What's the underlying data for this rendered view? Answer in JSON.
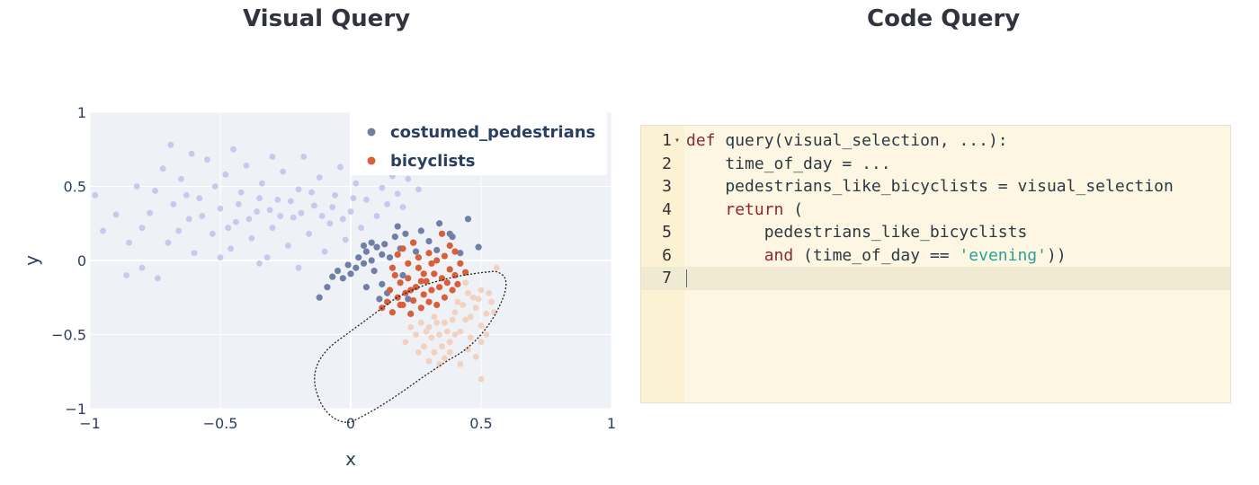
{
  "titles": {
    "visual": "Visual Query",
    "code": "Code Query"
  },
  "chart_data": {
    "type": "scatter",
    "xlabel": "x",
    "ylabel": "y",
    "xlim": [
      -1,
      1
    ],
    "ylim": [
      -1,
      1
    ],
    "x_ticks": [
      "−1",
      "−0.5",
      "0",
      "0.5",
      "1"
    ],
    "y_ticks": [
      "1",
      "0.5",
      "0",
      "−0.5",
      "−1"
    ],
    "grid": true,
    "legend_position": "top-right",
    "series": [
      {
        "name": "costumed_pedestrians",
        "color": "#6f7fa5",
        "faded_color": "#c9c7ec",
        "selected_points": [
          [
            -0.07,
            -0.11
          ],
          [
            -0.05,
            -0.07
          ],
          [
            -0.03,
            -0.12
          ],
          [
            -0.01,
            -0.03
          ],
          [
            0.0,
            -0.09
          ],
          [
            0.02,
            -0.05
          ],
          [
            0.03,
            0.02
          ],
          [
            0.05,
            -0.02
          ],
          [
            0.06,
            0.06
          ],
          [
            0.08,
            0.0
          ],
          [
            0.09,
            -0.07
          ],
          [
            0.1,
            0.09
          ],
          [
            0.12,
            0.04
          ],
          [
            0.13,
            0.11
          ],
          [
            0.15,
            0.02
          ],
          [
            0.17,
            0.16
          ],
          [
            0.19,
            0.08
          ],
          [
            0.21,
            0.18
          ],
          [
            0.24,
            0.12
          ],
          [
            0.27,
            0.2
          ],
          [
            0.3,
            0.13
          ],
          [
            0.34,
            0.25
          ],
          [
            0.38,
            0.18
          ],
          [
            0.45,
            0.28
          ],
          [
            0.49,
            0.09
          ],
          [
            -0.12,
            -0.25
          ],
          [
            -0.09,
            -0.18
          ],
          [
            0.06,
            -0.18
          ],
          [
            0.11,
            -0.26
          ],
          [
            0.14,
            -0.22
          ],
          [
            0.2,
            -0.1
          ],
          [
            0.05,
            0.1
          ],
          [
            0.18,
            0.23
          ],
          [
            0.25,
            0.06
          ],
          [
            0.33,
            0.07
          ],
          [
            0.42,
            0.05
          ],
          [
            0.08,
            0.12
          ],
          [
            0.12,
            -0.16
          ],
          [
            0.22,
            -0.26
          ],
          [
            0.39,
            0.16
          ]
        ],
        "faded_points": [
          [
            -0.98,
            0.44
          ],
          [
            -0.9,
            0.31
          ],
          [
            -0.85,
            0.12
          ],
          [
            -0.8,
            0.22
          ],
          [
            -0.75,
            0.47
          ],
          [
            -0.72,
            0.62
          ],
          [
            -0.7,
            0.12
          ],
          [
            -0.68,
            0.38
          ],
          [
            -0.65,
            0.55
          ],
          [
            -0.62,
            0.28
          ],
          [
            -0.6,
            0.05
          ],
          [
            -0.58,
            0.42
          ],
          [
            -0.55,
            0.68
          ],
          [
            -0.53,
            0.18
          ],
          [
            -0.5,
            0.35
          ],
          [
            -0.48,
            0.58
          ],
          [
            -0.46,
            0.08
          ],
          [
            -0.44,
            0.26
          ],
          [
            -0.42,
            0.46
          ],
          [
            -0.4,
            0.64
          ],
          [
            -0.38,
            0.15
          ],
          [
            -0.36,
            0.33
          ],
          [
            -0.34,
            0.52
          ],
          [
            -0.32,
            0.02
          ],
          [
            -0.3,
            0.22
          ],
          [
            -0.28,
            0.41
          ],
          [
            -0.26,
            0.6
          ],
          [
            -0.24,
            0.1
          ],
          [
            -0.22,
            0.29
          ],
          [
            -0.2,
            0.48
          ],
          [
            -0.18,
            0.7
          ],
          [
            -0.16,
            0.18
          ],
          [
            -0.14,
            0.37
          ],
          [
            -0.12,
            0.56
          ],
          [
            -0.1,
            0.06
          ],
          [
            -0.08,
            0.25
          ],
          [
            -0.06,
            0.44
          ],
          [
            -0.04,
            0.63
          ],
          [
            -0.02,
            0.14
          ],
          [
            0.0,
            0.33
          ],
          [
            0.02,
            0.52
          ],
          [
            0.04,
            0.22
          ],
          [
            0.06,
            0.41
          ],
          [
            0.08,
            0.6
          ],
          [
            0.1,
            0.3
          ],
          [
            0.12,
            0.49
          ],
          [
            0.14,
            0.38
          ],
          [
            0.16,
            0.57
          ],
          [
            0.18,
            0.45
          ],
          [
            0.2,
            0.36
          ],
          [
            -0.95,
            0.2
          ],
          [
            -0.82,
            0.5
          ],
          [
            -0.77,
            0.32
          ],
          [
            -0.66,
            0.2
          ],
          [
            -0.63,
            0.44
          ],
          [
            -0.57,
            0.3
          ],
          [
            -0.52,
            0.5
          ],
          [
            -0.47,
            0.22
          ],
          [
            -0.43,
            0.38
          ],
          [
            -0.39,
            0.28
          ],
          [
            -0.35,
            0.42
          ],
          [
            -0.31,
            0.34
          ],
          [
            -0.27,
            0.3
          ],
          [
            -0.23,
            0.4
          ],
          [
            -0.19,
            0.32
          ],
          [
            -0.15,
            0.46
          ],
          [
            -0.11,
            0.3
          ],
          [
            -0.07,
            0.36
          ],
          [
            -0.03,
            0.28
          ],
          [
            0.01,
            0.42
          ],
          [
            -0.86,
            -0.1
          ],
          [
            -0.8,
            -0.05
          ],
          [
            -0.74,
            -0.12
          ],
          [
            -0.69,
            0.78
          ],
          [
            -0.61,
            0.72
          ],
          [
            -0.45,
            0.75
          ],
          [
            -0.3,
            0.7
          ],
          [
            0.05,
            0.68
          ],
          [
            0.15,
            0.66
          ],
          [
            -0.5,
            0.02
          ],
          [
            -0.35,
            -0.02
          ],
          [
            -0.2,
            -0.05
          ],
          [
            0.22,
            0.55
          ],
          [
            0.26,
            0.48
          ]
        ]
      },
      {
        "name": "bicyclists",
        "color": "#d95f3b",
        "faded_color": "#f1d2c0",
        "selected_points": [
          [
            0.12,
            -0.32
          ],
          [
            0.14,
            -0.28
          ],
          [
            0.15,
            -0.2
          ],
          [
            0.16,
            -0.35
          ],
          [
            0.18,
            -0.25
          ],
          [
            0.19,
            -0.15
          ],
          [
            0.2,
            -0.3
          ],
          [
            0.21,
            -0.22
          ],
          [
            0.22,
            -0.12
          ],
          [
            0.23,
            -0.36
          ],
          [
            0.24,
            -0.27
          ],
          [
            0.25,
            -0.18
          ],
          [
            0.26,
            -0.05
          ],
          [
            0.27,
            -0.32
          ],
          [
            0.28,
            -0.23
          ],
          [
            0.29,
            -0.14
          ],
          [
            0.3,
            -0.28
          ],
          [
            0.31,
            -0.2
          ],
          [
            0.32,
            -0.09
          ],
          [
            0.33,
            -0.3
          ],
          [
            0.34,
            -0.18
          ],
          [
            0.35,
            -0.12
          ],
          [
            0.36,
            -0.25
          ],
          [
            0.37,
            -0.15
          ],
          [
            0.38,
            -0.06
          ],
          [
            0.39,
            -0.2
          ],
          [
            0.4,
            -0.1
          ],
          [
            0.41,
            -0.16
          ],
          [
            0.42,
            -0.02
          ],
          [
            0.44,
            -0.08
          ],
          [
            0.16,
            -0.05
          ],
          [
            0.18,
            0.04
          ],
          [
            0.2,
            0.08
          ],
          [
            0.22,
            -0.02
          ],
          [
            0.24,
            0.12
          ],
          [
            0.26,
            0.02
          ],
          [
            0.28,
            -0.09
          ],
          [
            0.3,
            0.05
          ],
          [
            0.33,
            0.0
          ],
          [
            0.36,
            0.03
          ],
          [
            0.38,
            0.1
          ],
          [
            0.4,
            0.06
          ],
          [
            0.35,
            0.18
          ],
          [
            0.31,
            -0.02
          ],
          [
            0.27,
            -0.14
          ],
          [
            0.23,
            -0.2
          ],
          [
            0.19,
            -0.3
          ],
          [
            0.17,
            -0.1
          ]
        ],
        "faded_points": [
          [
            0.3,
            -0.45
          ],
          [
            0.32,
            -0.38
          ],
          [
            0.34,
            -0.5
          ],
          [
            0.36,
            -0.42
          ],
          [
            0.38,
            -0.55
          ],
          [
            0.4,
            -0.35
          ],
          [
            0.42,
            -0.48
          ],
          [
            0.44,
            -0.4
          ],
          [
            0.46,
            -0.52
          ],
          [
            0.48,
            -0.32
          ],
          [
            0.5,
            -0.44
          ],
          [
            0.52,
            -0.36
          ],
          [
            0.54,
            -0.28
          ],
          [
            0.45,
            -0.22
          ],
          [
            0.47,
            -0.25
          ],
          [
            0.5,
            -0.2
          ],
          [
            0.43,
            -0.3
          ],
          [
            0.41,
            -0.28
          ],
          [
            0.39,
            -0.4
          ],
          [
            0.37,
            -0.48
          ],
          [
            0.35,
            -0.58
          ],
          [
            0.33,
            -0.42
          ],
          [
            0.31,
            -0.52
          ],
          [
            0.29,
            -0.48
          ],
          [
            0.27,
            -0.42
          ],
          [
            0.25,
            -0.5
          ],
          [
            0.23,
            -0.45
          ],
          [
            0.21,
            -0.55
          ],
          [
            0.28,
            -0.58
          ],
          [
            0.32,
            -0.62
          ],
          [
            0.45,
            -0.6
          ],
          [
            0.5,
            -0.55
          ],
          [
            0.55,
            -0.35
          ],
          [
            0.56,
            -0.05
          ],
          [
            0.48,
            -0.65
          ],
          [
            0.42,
            -0.7
          ],
          [
            0.36,
            -0.66
          ],
          [
            0.3,
            -0.68
          ],
          [
            0.26,
            -0.62
          ],
          [
            0.5,
            -0.8
          ],
          [
            0.46,
            -0.38
          ],
          [
            0.52,
            -0.5
          ],
          [
            0.44,
            -0.15
          ],
          [
            0.49,
            -0.26
          ],
          [
            0.53,
            -0.22
          ],
          [
            0.4,
            -0.5
          ],
          [
            0.38,
            -0.62
          ],
          [
            0.34,
            -0.7
          ]
        ]
      }
    ],
    "lasso_selection": "dotted lasso around points from about (-0.13,-0.25) to (0.58,0.45)"
  },
  "editor": {
    "lines": [
      {
        "n": "1",
        "fold": "▾",
        "tokens": [
          [
            "kw2",
            "def"
          ],
          [
            "plain",
            " query(visual_selection, ...):"
          ]
        ]
      },
      {
        "n": "2",
        "fold": "",
        "tokens": [
          [
            "plain",
            "    time_of_day = ..."
          ]
        ]
      },
      {
        "n": "3",
        "fold": "",
        "tokens": [
          [
            "plain",
            "    pedestrians_like_bicyclists = visual_selection"
          ]
        ]
      },
      {
        "n": "4",
        "fold": "",
        "tokens": [
          [
            "plain",
            "    "
          ],
          [
            "kw2",
            "return"
          ],
          [
            "plain",
            " ("
          ]
        ]
      },
      {
        "n": "5",
        "fold": "",
        "tokens": [
          [
            "plain",
            "        pedestrians_like_bicyclists"
          ]
        ]
      },
      {
        "n": "6",
        "fold": "",
        "tokens": [
          [
            "plain",
            "        "
          ],
          [
            "kw2",
            "and"
          ],
          [
            "plain",
            " (time_of_day == "
          ],
          [
            "str",
            "'evening'"
          ],
          [
            "plain",
            "))"
          ]
        ]
      },
      {
        "n": "7",
        "fold": "",
        "tokens": []
      }
    ],
    "active_line": 7
  }
}
